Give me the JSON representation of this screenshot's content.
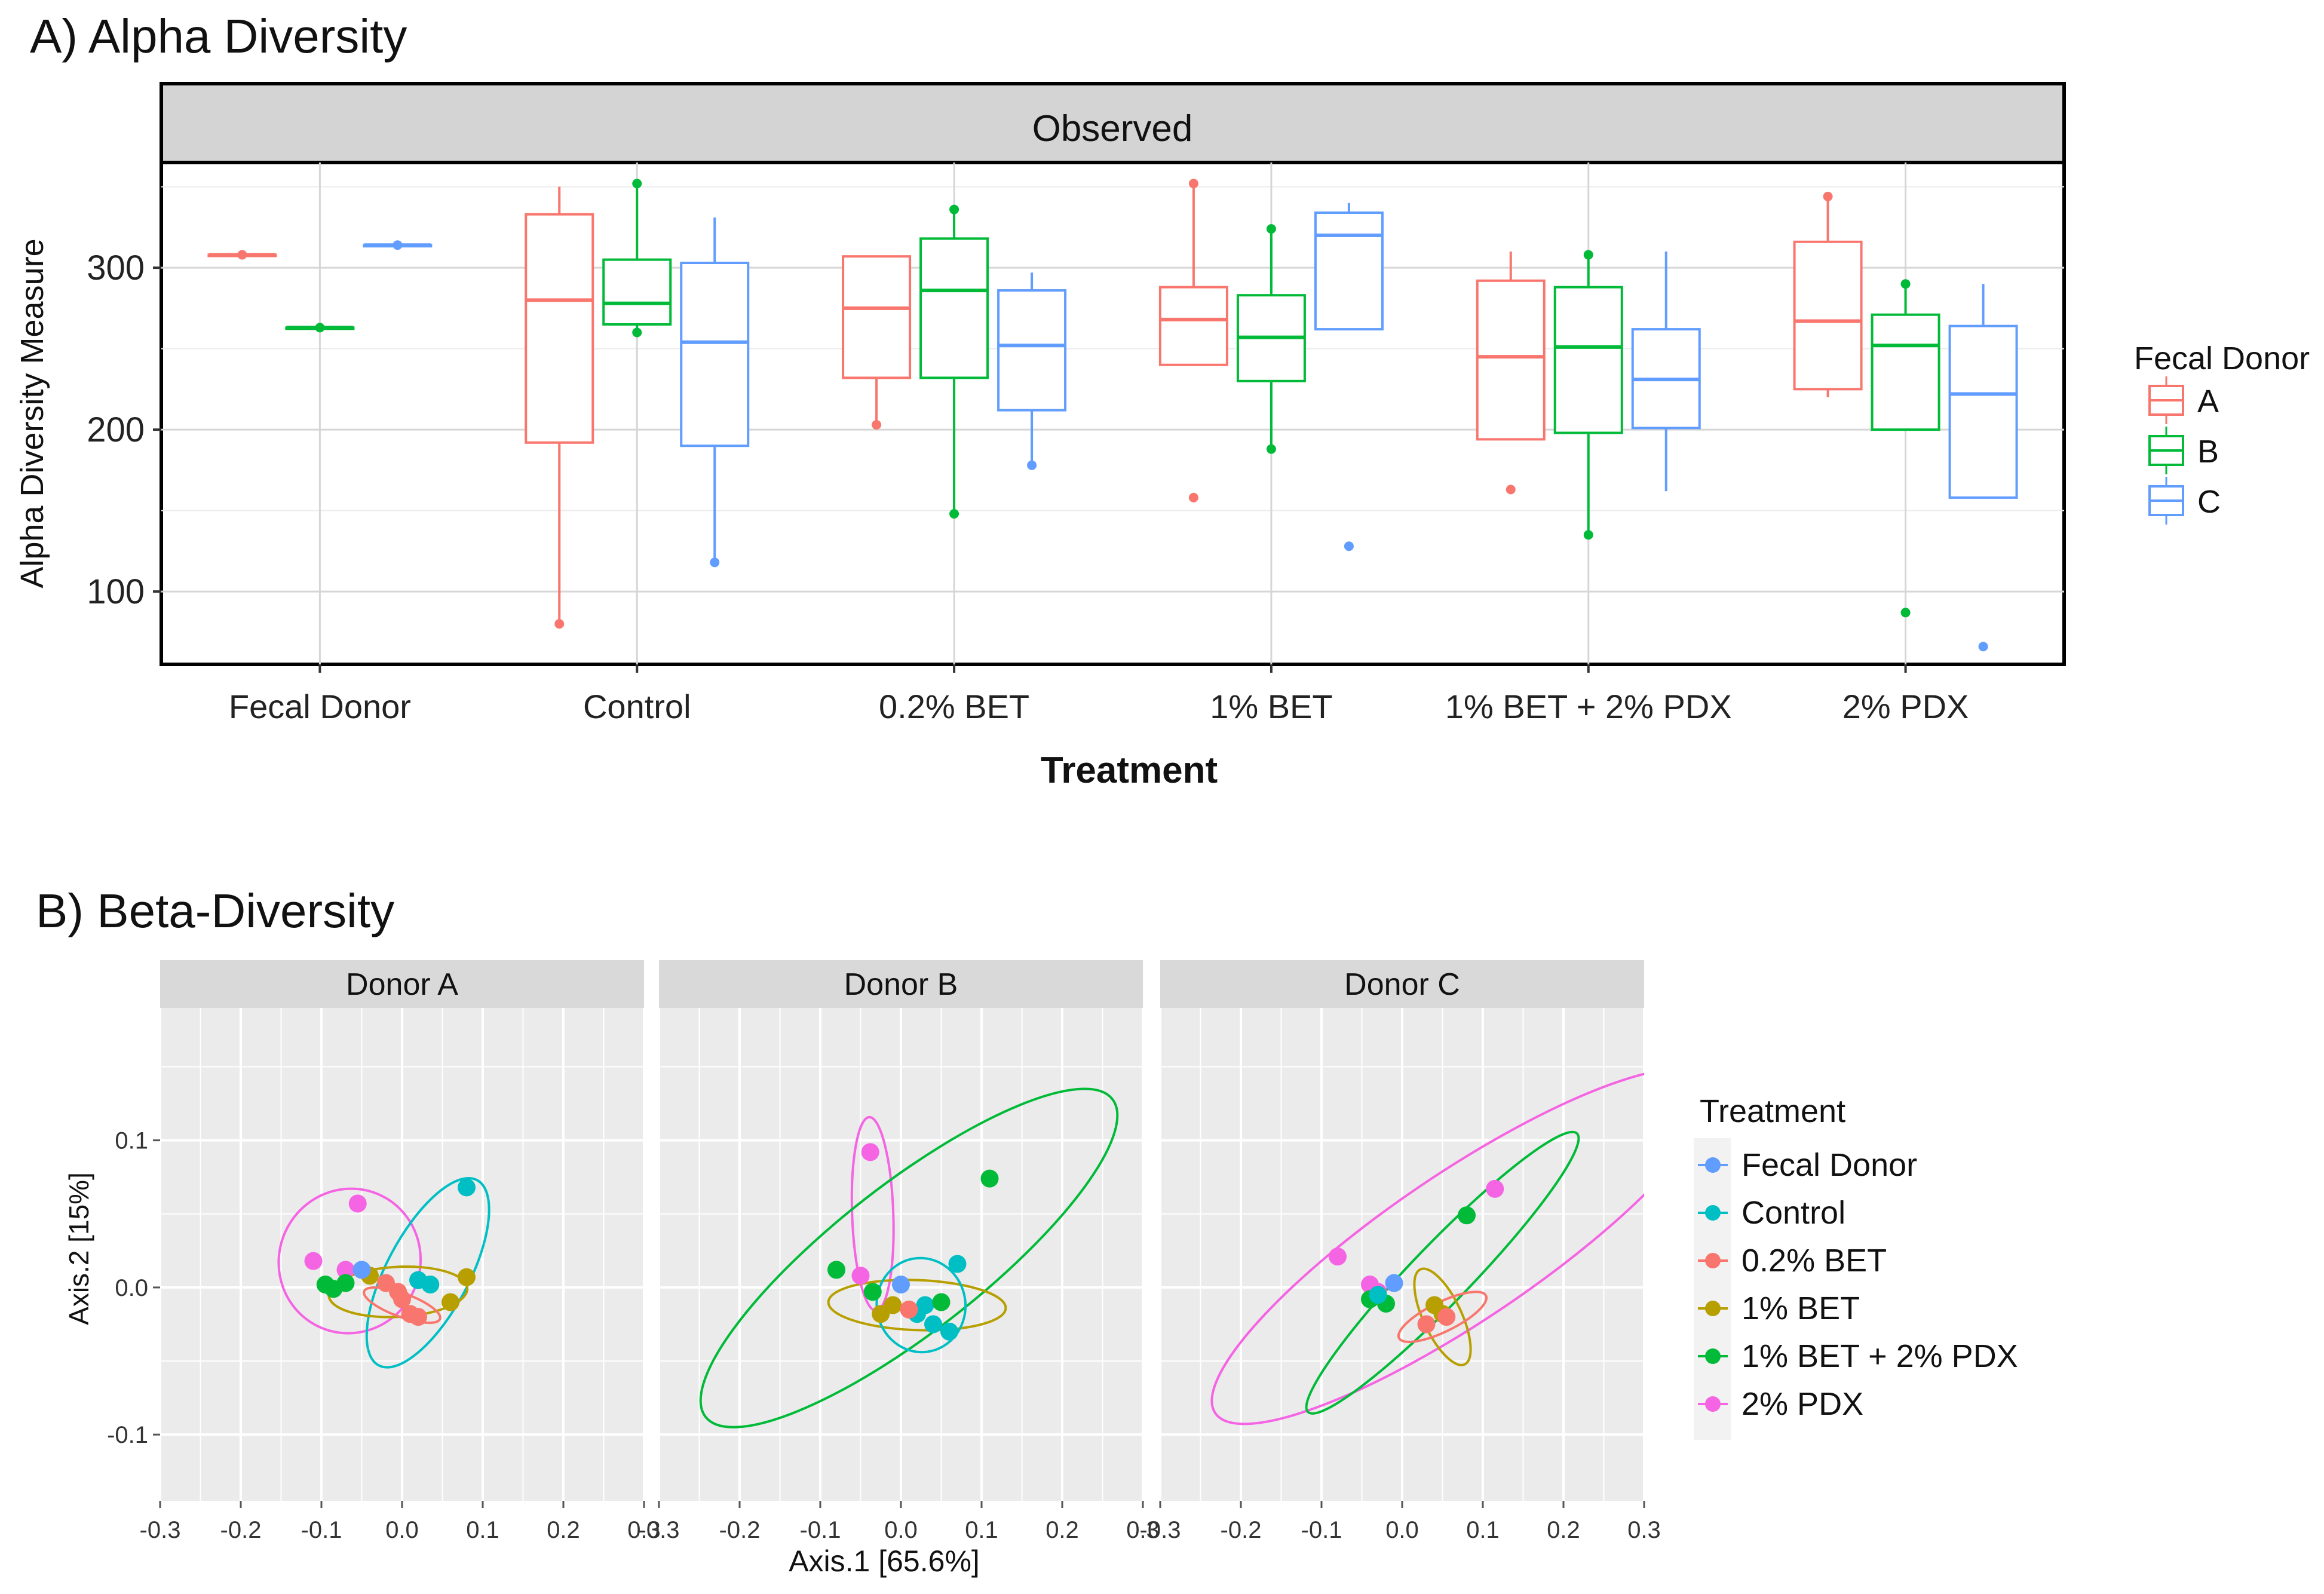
{
  "chart_data": [
    {
      "type": "box",
      "panel_label": "A) Alpha Diversity",
      "strip_title": "Observed",
      "xlabel": "Treatment",
      "ylabel": "Alpha Diversity Measure",
      "ylim": [
        55,
        365
      ],
      "yticks": [
        100,
        200,
        300
      ],
      "categories": [
        "Fecal Donor",
        "Control",
        "0.2% BET",
        "1% BET",
        "1% BET + 2% PDX",
        "2% PDX"
      ],
      "legend": {
        "title": "Fecal Donor",
        "placement": "right",
        "entries": [
          "A",
          "B",
          "C"
        ]
      },
      "series": [
        {
          "name": "A",
          "color": "#F8766D",
          "boxes": [
            {
              "min": 308,
              "q1": 308,
              "median": 308,
              "q3": 308,
              "max": 308,
              "outliers": [
                308
              ]
            },
            {
              "min": 80,
              "q1": 192,
              "median": 280,
              "q3": 333,
              "max": 350,
              "outliers": [
                80
              ]
            },
            {
              "min": 203,
              "q1": 232,
              "median": 275,
              "q3": 307,
              "max": 307,
              "outliers": [
                203
              ]
            },
            {
              "min": 240,
              "q1": 240,
              "median": 268,
              "q3": 288,
              "max": 352,
              "outliers": [
                352,
                158
              ]
            },
            {
              "min": 194,
              "q1": 194,
              "median": 245,
              "q3": 292,
              "max": 310,
              "outliers": [
                163
              ]
            },
            {
              "min": 220,
              "q1": 225,
              "median": 267,
              "q3": 316,
              "max": 344,
              "outliers": [
                344
              ]
            }
          ]
        },
        {
          "name": "B",
          "color": "#00BA38",
          "boxes": [
            {
              "min": 263,
              "q1": 263,
              "median": 263,
              "q3": 263,
              "max": 263,
              "outliers": [
                263
              ]
            },
            {
              "min": 260,
              "q1": 265,
              "median": 278,
              "q3": 305,
              "max": 352,
              "outliers": [
                352,
                260
              ]
            },
            {
              "min": 148,
              "q1": 232,
              "median": 286,
              "q3": 318,
              "max": 336,
              "outliers": [
                336,
                148
              ]
            },
            {
              "min": 188,
              "q1": 230,
              "median": 257,
              "q3": 283,
              "max": 324,
              "outliers": [
                324,
                188
              ]
            },
            {
              "min": 135,
              "q1": 198,
              "median": 251,
              "q3": 288,
              "max": 308,
              "outliers": [
                308,
                135
              ]
            },
            {
              "min": 200,
              "q1": 200,
              "median": 252,
              "q3": 271,
              "max": 290,
              "outliers": [
                290,
                87
              ]
            }
          ]
        },
        {
          "name": "C",
          "color": "#619CFF",
          "boxes": [
            {
              "min": 314,
              "q1": 314,
              "median": 314,
              "q3": 314,
              "max": 314,
              "outliers": [
                314
              ]
            },
            {
              "min": 118,
              "q1": 190,
              "median": 254,
              "q3": 303,
              "max": 331,
              "outliers": [
                118
              ]
            },
            {
              "min": 178,
              "q1": 212,
              "median": 252,
              "q3": 286,
              "max": 297,
              "outliers": [
                178
              ]
            },
            {
              "min": 262,
              "q1": 262,
              "median": 320,
              "q3": 334,
              "max": 340,
              "outliers": [
                128
              ]
            },
            {
              "min": 162,
              "q1": 201,
              "median": 231,
              "q3": 262,
              "max": 310,
              "outliers": []
            },
            {
              "min": 158,
              "q1": 158,
              "median": 222,
              "q3": 264,
              "max": 290,
              "outliers": [
                66
              ]
            }
          ]
        }
      ]
    },
    {
      "type": "scatter",
      "panel_label": "B) Beta-Diversity",
      "xlabel": "Axis.1  [65.6%]",
      "ylabel": "Axis.2  [15%]",
      "xlim": [
        -0.3,
        0.3
      ],
      "ylim": [
        -0.145,
        0.19
      ],
      "xticks": [
        -0.3,
        -0.2,
        -0.1,
        0.0,
        0.1,
        0.2,
        0.3
      ],
      "xtick_labels": [
        "-0.3",
        "-0.2",
        "-0.1",
        "0.0",
        "0.1",
        "0.2",
        "0.3"
      ],
      "yticks": [
        0.1,
        0.0,
        -0.1
      ],
      "ytick_labels": [
        "0.1",
        "0.0",
        "-0.1"
      ],
      "legend": {
        "title": "Treatment",
        "placement": "right",
        "entries": [
          {
            "name": "Fecal Donor",
            "color": "#619CFF"
          },
          {
            "name": "Control",
            "color": "#00BFC4"
          },
          {
            "name": "0.2% BET",
            "color": "#F8766D"
          },
          {
            "name": "1% BET",
            "color": "#B79F00"
          },
          {
            "name": "1% BET + 2% PDX",
            "color": "#00BA38"
          },
          {
            "name": "2% PDX",
            "color": "#F564E3"
          }
        ]
      },
      "facets": [
        {
          "title": "Donor A",
          "points": [
            {
              "group": "2% PDX",
              "x": -0.055,
              "y": 0.057
            },
            {
              "group": "2% PDX",
              "x": -0.11,
              "y": 0.018
            },
            {
              "group": "2% PDX",
              "x": -0.07,
              "y": 0.012
            },
            {
              "group": "Control",
              "x": 0.08,
              "y": 0.068
            },
            {
              "group": "Control",
              "x": 0.02,
              "y": 0.005
            },
            {
              "group": "Control",
              "x": 0.035,
              "y": 0.002
            },
            {
              "group": "1% BET + 2% PDX",
              "x": -0.095,
              "y": 0.002
            },
            {
              "group": "1% BET + 2% PDX",
              "x": -0.085,
              "y": -0.001
            },
            {
              "group": "1% BET + 2% PDX",
              "x": -0.07,
              "y": 0.003
            },
            {
              "group": "0.2% BET",
              "x": -0.02,
              "y": 0.003
            },
            {
              "group": "0.2% BET",
              "x": 0.0,
              "y": -0.008
            },
            {
              "group": "0.2% BET",
              "x": 0.01,
              "y": -0.018
            },
            {
              "group": "0.2% BET",
              "x": 0.02,
              "y": -0.02
            },
            {
              "group": "0.2% BET",
              "x": -0.005,
              "y": -0.003
            },
            {
              "group": "1% BET",
              "x": 0.06,
              "y": -0.01
            },
            {
              "group": "1% BET",
              "x": 0.08,
              "y": 0.007
            },
            {
              "group": "1% BET",
              "x": -0.04,
              "y": 0.008
            },
            {
              "group": "Fecal Donor",
              "x": -0.05,
              "y": 0.012
            }
          ],
          "ellipses": [
            {
              "group": "2% PDX",
              "cx": -0.065,
              "cy": 0.018,
              "rx": 0.09,
              "ry": 0.048,
              "angle_deg": 65
            },
            {
              "group": "Control",
              "cx": 0.032,
              "cy": 0.01,
              "rx": 0.13,
              "ry": 0.028,
              "angle_deg": 62
            },
            {
              "group": "1% BET",
              "cx": -0.005,
              "cy": -0.003,
              "rx": 0.086,
              "ry": 0.017,
              "angle_deg": 3
            },
            {
              "group": "0.2% BET",
              "cx": 0.0,
              "cy": -0.012,
              "rx": 0.05,
              "ry": 0.008,
              "angle_deg": -20
            }
          ]
        },
        {
          "title": "Donor B",
          "points": [
            {
              "group": "2% PDX",
              "x": -0.038,
              "y": 0.092
            },
            {
              "group": "2% PDX",
              "x": -0.05,
              "y": 0.008
            },
            {
              "group": "1% BET + 2% PDX",
              "x": 0.11,
              "y": 0.074
            },
            {
              "group": "1% BET + 2% PDX",
              "x": -0.08,
              "y": 0.012
            },
            {
              "group": "1% BET + 2% PDX",
              "x": -0.035,
              "y": -0.003
            },
            {
              "group": "Control",
              "x": 0.07,
              "y": 0.016
            },
            {
              "group": "Control",
              "x": 0.03,
              "y": -0.012
            },
            {
              "group": "Control",
              "x": 0.04,
              "y": -0.025
            },
            {
              "group": "Control",
              "x": 0.06,
              "y": -0.03
            },
            {
              "group": "Control",
              "x": 0.02,
              "y": -0.018
            },
            {
              "group": "Fecal Donor",
              "x": 0.0,
              "y": 0.002
            },
            {
              "group": "1% BET",
              "x": -0.01,
              "y": -0.012
            },
            {
              "group": "1% BET",
              "x": -0.025,
              "y": -0.018
            },
            {
              "group": "0.2% BET",
              "x": 0.01,
              "y": -0.015
            },
            {
              "group": "1% BET + 2% PDX",
              "x": 0.05,
              "y": -0.01
            }
          ],
          "ellipses": [
            {
              "group": "2% PDX",
              "cx": -0.035,
              "cy": 0.05,
              "rx": 0.12,
              "ry": 0.014,
              "angle_deg": -88
            },
            {
              "group": "1% BET + 2% PDX",
              "cx": 0.01,
              "cy": 0.02,
              "rx": 0.32,
              "ry": 0.05,
              "angle_deg": 38
            },
            {
              "group": "1% BET",
              "cx": 0.02,
              "cy": -0.012,
              "rx": 0.11,
              "ry": 0.017,
              "angle_deg": -2
            },
            {
              "group": "Control",
              "cx": 0.025,
              "cy": -0.012,
              "rx": 0.055,
              "ry": 0.032,
              "angle_deg": 8
            }
          ]
        },
        {
          "title": "Donor C",
          "points": [
            {
              "group": "2% PDX",
              "x": 0.115,
              "y": 0.067
            },
            {
              "group": "2% PDX",
              "x": -0.08,
              "y": 0.021
            },
            {
              "group": "2% PDX",
              "x": -0.04,
              "y": 0.002
            },
            {
              "group": "2% PDX",
              "x": -0.03,
              "y": -0.003
            },
            {
              "group": "1% BET + 2% PDX",
              "x": 0.08,
              "y": 0.049
            },
            {
              "group": "1% BET + 2% PDX",
              "x": -0.04,
              "y": -0.008
            },
            {
              "group": "1% BET + 2% PDX",
              "x": -0.02,
              "y": -0.011
            },
            {
              "group": "Fecal Donor",
              "x": -0.01,
              "y": 0.003
            },
            {
              "group": "Control",
              "x": -0.03,
              "y": -0.005
            },
            {
              "group": "1% BET",
              "x": 0.04,
              "y": -0.012
            },
            {
              "group": "1% BET",
              "x": 0.05,
              "y": -0.018
            },
            {
              "group": "0.2% BET",
              "x": 0.03,
              "y": -0.025
            },
            {
              "group": "0.2% BET",
              "x": 0.055,
              "y": -0.02
            }
          ],
          "ellipses": [
            {
              "group": "2% PDX",
              "cx": 0.075,
              "cy": 0.028,
              "rx": 0.37,
              "ry": 0.05,
              "angle_deg": 34
            },
            {
              "group": "1% BET + 2% PDX",
              "cx": 0.05,
              "cy": 0.01,
              "rx": 0.24,
              "ry": 0.02,
              "angle_deg": 46
            },
            {
              "group": "1% BET",
              "cx": 0.05,
              "cy": -0.02,
              "rx": 0.065,
              "ry": 0.013,
              "angle_deg": -65
            },
            {
              "group": "0.2% BET",
              "cx": 0.05,
              "cy": -0.02,
              "rx": 0.06,
              "ry": 0.01,
              "angle_deg": 26
            }
          ]
        }
      ]
    }
  ]
}
